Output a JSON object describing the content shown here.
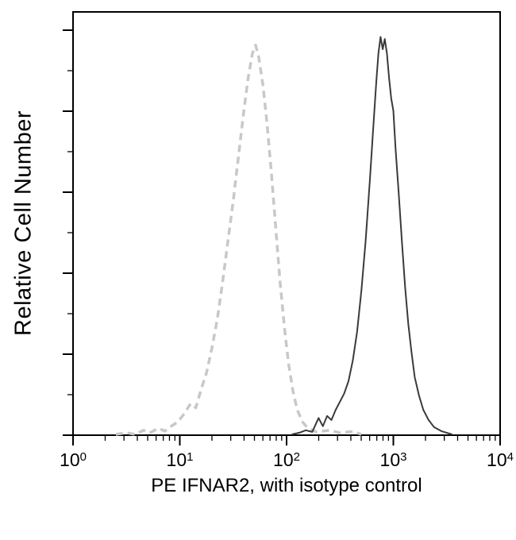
{
  "chart_data": {
    "type": "line",
    "subtype": "flow-cytometry-histogram",
    "title": "",
    "xlabel": "PE IFNAR2, with isotype control",
    "ylabel": "Relative Cell Number",
    "x_scale": "log10",
    "x_range_log10": [
      0,
      4
    ],
    "x_ticks": [
      {
        "base": "10",
        "exp": "0"
      },
      {
        "base": "10",
        "exp": "1"
      },
      {
        "base": "10",
        "exp": "2"
      },
      {
        "base": "10",
        "exp": "3"
      },
      {
        "base": "10",
        "exp": "4"
      }
    ],
    "y_axis": {
      "tick_labels_shown": false,
      "major_tick_count": 6
    },
    "grid": false,
    "legend": "none",
    "axis_color": "#000000",
    "series": [
      {
        "name": "isotype-control",
        "style": "dashed",
        "color": "#c8c8c8",
        "line_width": 3.5,
        "peak_x": 50,
        "points_log10x_y": [
          [
            0.4,
            0.0
          ],
          [
            0.5,
            0.004
          ],
          [
            0.58,
            0.0
          ],
          [
            0.66,
            0.01
          ],
          [
            0.72,
            0.004
          ],
          [
            0.8,
            0.015
          ],
          [
            0.86,
            0.008
          ],
          [
            0.92,
            0.02
          ],
          [
            0.98,
            0.03
          ],
          [
            1.04,
            0.05
          ],
          [
            1.1,
            0.075
          ],
          [
            1.15,
            0.065
          ],
          [
            1.2,
            0.11
          ],
          [
            1.25,
            0.15
          ],
          [
            1.3,
            0.21
          ],
          [
            1.35,
            0.28
          ],
          [
            1.4,
            0.37
          ],
          [
            1.45,
            0.47
          ],
          [
            1.5,
            0.57
          ],
          [
            1.55,
            0.68
          ],
          [
            1.6,
            0.79
          ],
          [
            1.64,
            0.87
          ],
          [
            1.68,
            0.93
          ],
          [
            1.71,
            0.95
          ],
          [
            1.74,
            0.92
          ],
          [
            1.78,
            0.85
          ],
          [
            1.82,
            0.75
          ],
          [
            1.86,
            0.63
          ],
          [
            1.9,
            0.5
          ],
          [
            1.94,
            0.37
          ],
          [
            1.98,
            0.26
          ],
          [
            2.02,
            0.17
          ],
          [
            2.06,
            0.105
          ],
          [
            2.1,
            0.06
          ],
          [
            2.15,
            0.03
          ],
          [
            2.2,
            0.015
          ],
          [
            2.28,
            0.006
          ],
          [
            2.4,
            0.01
          ],
          [
            2.5,
            0.004
          ],
          [
            2.62,
            0.007
          ],
          [
            2.7,
            0.0
          ]
        ]
      },
      {
        "name": "pe-ifnar2",
        "style": "solid",
        "color": "#3a3a3a",
        "line_width": 2,
        "peak_x": 760,
        "points_log10x_y": [
          [
            2.05,
            0.0
          ],
          [
            2.12,
            0.004
          ],
          [
            2.18,
            0.01
          ],
          [
            2.24,
            0.006
          ],
          [
            2.3,
            0.04
          ],
          [
            2.34,
            0.02
          ],
          [
            2.38,
            0.045
          ],
          [
            2.42,
            0.035
          ],
          [
            2.46,
            0.06
          ],
          [
            2.5,
            0.08
          ],
          [
            2.54,
            0.1
          ],
          [
            2.58,
            0.13
          ],
          [
            2.62,
            0.18
          ],
          [
            2.66,
            0.25
          ],
          [
            2.7,
            0.35
          ],
          [
            2.74,
            0.47
          ],
          [
            2.78,
            0.62
          ],
          [
            2.81,
            0.74
          ],
          [
            2.84,
            0.86
          ],
          [
            2.86,
            0.93
          ],
          [
            2.88,
            0.97
          ],
          [
            2.9,
            0.94
          ],
          [
            2.92,
            0.965
          ],
          [
            2.94,
            0.93
          ],
          [
            2.96,
            0.87
          ],
          [
            2.98,
            0.82
          ],
          [
            3.0,
            0.79
          ],
          [
            3.02,
            0.7
          ],
          [
            3.05,
            0.59
          ],
          [
            3.08,
            0.47
          ],
          [
            3.11,
            0.36
          ],
          [
            3.14,
            0.27
          ],
          [
            3.17,
            0.2
          ],
          [
            3.2,
            0.14
          ],
          [
            3.24,
            0.095
          ],
          [
            3.28,
            0.06
          ],
          [
            3.33,
            0.035
          ],
          [
            3.38,
            0.018
          ],
          [
            3.45,
            0.008
          ],
          [
            3.55,
            0.0
          ]
        ]
      }
    ]
  }
}
